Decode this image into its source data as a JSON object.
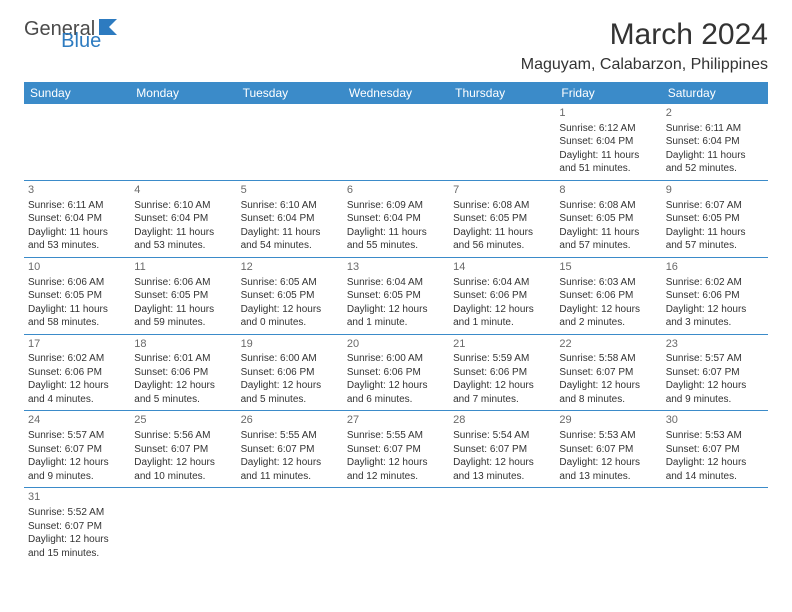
{
  "brand": {
    "text1": "General",
    "text2": "Blue"
  },
  "title": "March 2024",
  "location": "Maguyam, Calabarzon, Philippines",
  "colors": {
    "header_bg": "#3b8bc9",
    "header_text": "#ffffff",
    "rule": "#3b8bc9",
    "brand_blue": "#2d7bc0",
    "text": "#333333"
  },
  "daynames": [
    "Sunday",
    "Monday",
    "Tuesday",
    "Wednesday",
    "Thursday",
    "Friday",
    "Saturday"
  ],
  "weeks": [
    [
      null,
      null,
      null,
      null,
      null,
      {
        "n": "1",
        "rise": "Sunrise: 6:12 AM",
        "set": "Sunset: 6:04 PM",
        "dl1": "Daylight: 11 hours",
        "dl2": "and 51 minutes."
      },
      {
        "n": "2",
        "rise": "Sunrise: 6:11 AM",
        "set": "Sunset: 6:04 PM",
        "dl1": "Daylight: 11 hours",
        "dl2": "and 52 minutes."
      }
    ],
    [
      {
        "n": "3",
        "rise": "Sunrise: 6:11 AM",
        "set": "Sunset: 6:04 PM",
        "dl1": "Daylight: 11 hours",
        "dl2": "and 53 minutes."
      },
      {
        "n": "4",
        "rise": "Sunrise: 6:10 AM",
        "set": "Sunset: 6:04 PM",
        "dl1": "Daylight: 11 hours",
        "dl2": "and 53 minutes."
      },
      {
        "n": "5",
        "rise": "Sunrise: 6:10 AM",
        "set": "Sunset: 6:04 PM",
        "dl1": "Daylight: 11 hours",
        "dl2": "and 54 minutes."
      },
      {
        "n": "6",
        "rise": "Sunrise: 6:09 AM",
        "set": "Sunset: 6:04 PM",
        "dl1": "Daylight: 11 hours",
        "dl2": "and 55 minutes."
      },
      {
        "n": "7",
        "rise": "Sunrise: 6:08 AM",
        "set": "Sunset: 6:05 PM",
        "dl1": "Daylight: 11 hours",
        "dl2": "and 56 minutes."
      },
      {
        "n": "8",
        "rise": "Sunrise: 6:08 AM",
        "set": "Sunset: 6:05 PM",
        "dl1": "Daylight: 11 hours",
        "dl2": "and 57 minutes."
      },
      {
        "n": "9",
        "rise": "Sunrise: 6:07 AM",
        "set": "Sunset: 6:05 PM",
        "dl1": "Daylight: 11 hours",
        "dl2": "and 57 minutes."
      }
    ],
    [
      {
        "n": "10",
        "rise": "Sunrise: 6:06 AM",
        "set": "Sunset: 6:05 PM",
        "dl1": "Daylight: 11 hours",
        "dl2": "and 58 minutes."
      },
      {
        "n": "11",
        "rise": "Sunrise: 6:06 AM",
        "set": "Sunset: 6:05 PM",
        "dl1": "Daylight: 11 hours",
        "dl2": "and 59 minutes."
      },
      {
        "n": "12",
        "rise": "Sunrise: 6:05 AM",
        "set": "Sunset: 6:05 PM",
        "dl1": "Daylight: 12 hours",
        "dl2": "and 0 minutes."
      },
      {
        "n": "13",
        "rise": "Sunrise: 6:04 AM",
        "set": "Sunset: 6:05 PM",
        "dl1": "Daylight: 12 hours",
        "dl2": "and 1 minute."
      },
      {
        "n": "14",
        "rise": "Sunrise: 6:04 AM",
        "set": "Sunset: 6:06 PM",
        "dl1": "Daylight: 12 hours",
        "dl2": "and 1 minute."
      },
      {
        "n": "15",
        "rise": "Sunrise: 6:03 AM",
        "set": "Sunset: 6:06 PM",
        "dl1": "Daylight: 12 hours",
        "dl2": "and 2 minutes."
      },
      {
        "n": "16",
        "rise": "Sunrise: 6:02 AM",
        "set": "Sunset: 6:06 PM",
        "dl1": "Daylight: 12 hours",
        "dl2": "and 3 minutes."
      }
    ],
    [
      {
        "n": "17",
        "rise": "Sunrise: 6:02 AM",
        "set": "Sunset: 6:06 PM",
        "dl1": "Daylight: 12 hours",
        "dl2": "and 4 minutes."
      },
      {
        "n": "18",
        "rise": "Sunrise: 6:01 AM",
        "set": "Sunset: 6:06 PM",
        "dl1": "Daylight: 12 hours",
        "dl2": "and 5 minutes."
      },
      {
        "n": "19",
        "rise": "Sunrise: 6:00 AM",
        "set": "Sunset: 6:06 PM",
        "dl1": "Daylight: 12 hours",
        "dl2": "and 5 minutes."
      },
      {
        "n": "20",
        "rise": "Sunrise: 6:00 AM",
        "set": "Sunset: 6:06 PM",
        "dl1": "Daylight: 12 hours",
        "dl2": "and 6 minutes."
      },
      {
        "n": "21",
        "rise": "Sunrise: 5:59 AM",
        "set": "Sunset: 6:06 PM",
        "dl1": "Daylight: 12 hours",
        "dl2": "and 7 minutes."
      },
      {
        "n": "22",
        "rise": "Sunrise: 5:58 AM",
        "set": "Sunset: 6:07 PM",
        "dl1": "Daylight: 12 hours",
        "dl2": "and 8 minutes."
      },
      {
        "n": "23",
        "rise": "Sunrise: 5:57 AM",
        "set": "Sunset: 6:07 PM",
        "dl1": "Daylight: 12 hours",
        "dl2": "and 9 minutes."
      }
    ],
    [
      {
        "n": "24",
        "rise": "Sunrise: 5:57 AM",
        "set": "Sunset: 6:07 PM",
        "dl1": "Daylight: 12 hours",
        "dl2": "and 9 minutes."
      },
      {
        "n": "25",
        "rise": "Sunrise: 5:56 AM",
        "set": "Sunset: 6:07 PM",
        "dl1": "Daylight: 12 hours",
        "dl2": "and 10 minutes."
      },
      {
        "n": "26",
        "rise": "Sunrise: 5:55 AM",
        "set": "Sunset: 6:07 PM",
        "dl1": "Daylight: 12 hours",
        "dl2": "and 11 minutes."
      },
      {
        "n": "27",
        "rise": "Sunrise: 5:55 AM",
        "set": "Sunset: 6:07 PM",
        "dl1": "Daylight: 12 hours",
        "dl2": "and 12 minutes."
      },
      {
        "n": "28",
        "rise": "Sunrise: 5:54 AM",
        "set": "Sunset: 6:07 PM",
        "dl1": "Daylight: 12 hours",
        "dl2": "and 13 minutes."
      },
      {
        "n": "29",
        "rise": "Sunrise: 5:53 AM",
        "set": "Sunset: 6:07 PM",
        "dl1": "Daylight: 12 hours",
        "dl2": "and 13 minutes."
      },
      {
        "n": "30",
        "rise": "Sunrise: 5:53 AM",
        "set": "Sunset: 6:07 PM",
        "dl1": "Daylight: 12 hours",
        "dl2": "and 14 minutes."
      }
    ],
    [
      {
        "n": "31",
        "rise": "Sunrise: 5:52 AM",
        "set": "Sunset: 6:07 PM",
        "dl1": "Daylight: 12 hours",
        "dl2": "and 15 minutes."
      },
      null,
      null,
      null,
      null,
      null,
      null
    ]
  ]
}
